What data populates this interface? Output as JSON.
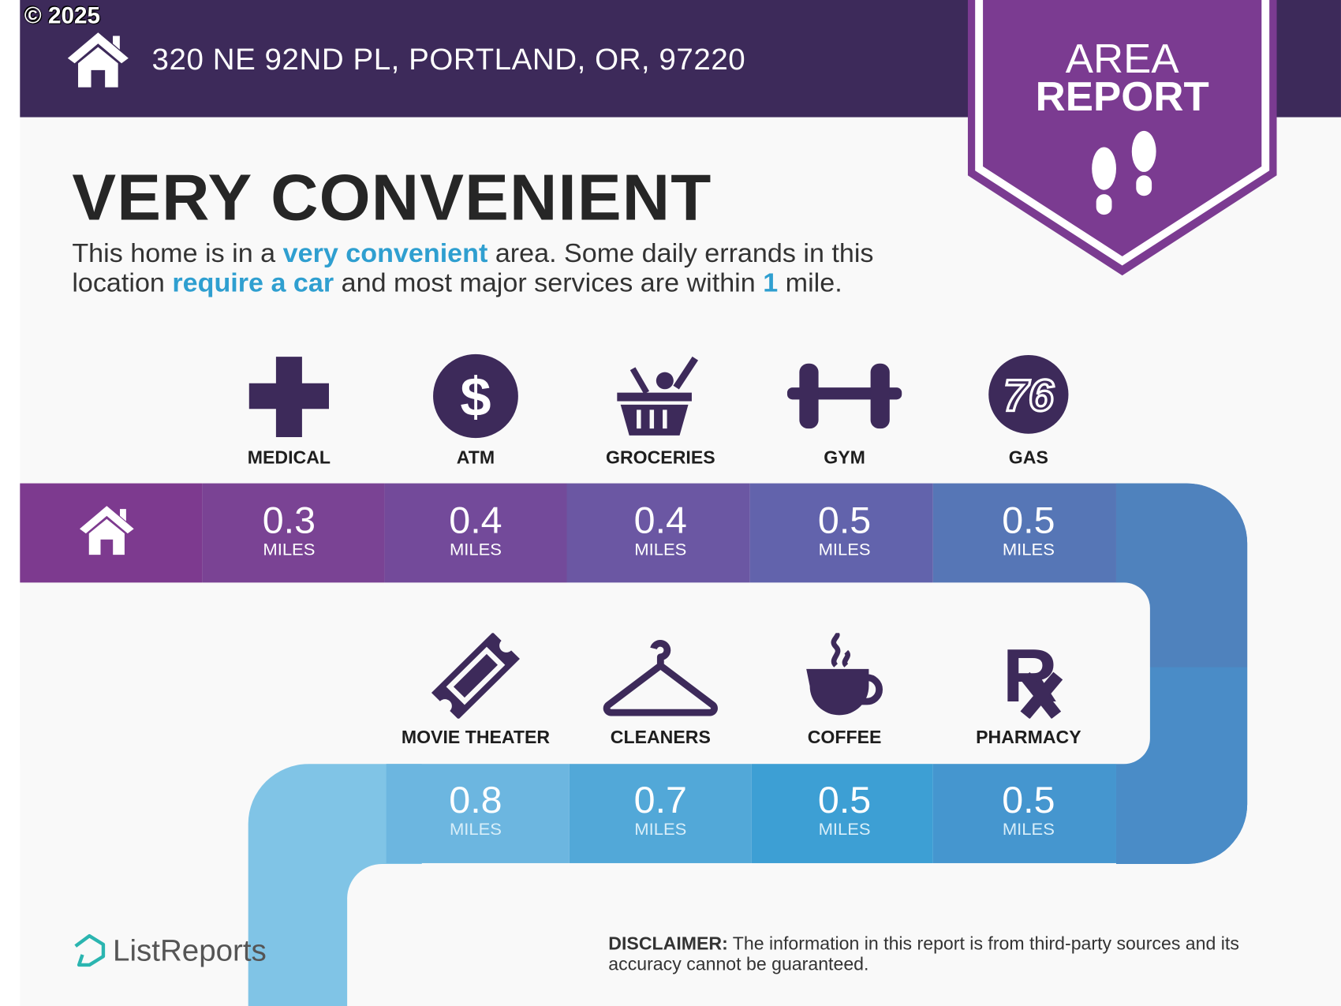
{
  "copyright": "© 2025",
  "header": {
    "address": "320 NE 92ND PL, PORTLAND, OR, 97220",
    "badge_line1": "AREA",
    "badge_line2": "REPORT"
  },
  "title": "VERY CONVENIENT",
  "description": {
    "p1": "This home is in a ",
    "h1": "very convenient",
    "p2": " area. Some daily errands in this location ",
    "h2": "require a car",
    "p3": " and most major services are within ",
    "h3": "1",
    "p4": " mile."
  },
  "row1": [
    {
      "label": "MEDICAL",
      "distance": "0.3",
      "unit": "MILES",
      "icon": "medical-cross-icon"
    },
    {
      "label": "ATM",
      "distance": "0.4",
      "unit": "MILES",
      "icon": "dollar-icon"
    },
    {
      "label": "GROCERIES",
      "distance": "0.4",
      "unit": "MILES",
      "icon": "grocery-basket-icon"
    },
    {
      "label": "GYM",
      "distance": "0.5",
      "unit": "MILES",
      "icon": "dumbbell-icon"
    },
    {
      "label": "GAS",
      "distance": "0.5",
      "unit": "MILES",
      "icon": "gas-76-icon"
    }
  ],
  "row2": [
    {
      "label": "MOVIE THEATER",
      "distance": "0.8",
      "unit": "MILES",
      "icon": "ticket-icon"
    },
    {
      "label": "CLEANERS",
      "distance": "0.7",
      "unit": "MILES",
      "icon": "hanger-icon"
    },
    {
      "label": "COFFEE",
      "distance": "0.5",
      "unit": "MILES",
      "icon": "coffee-cup-icon"
    },
    {
      "label": "PHARMACY",
      "distance": "0.5",
      "unit": "MILES",
      "icon": "rx-icon"
    }
  ],
  "gas_logo_text": "76",
  "footer": {
    "brand": "ListReports",
    "disclaimer_label": "DISCLAIMER:",
    "disclaimer_text": " The information in this report is from third-party sources and its accuracy cannot be guaranteed."
  },
  "colors": {
    "header": "#3d2a5a",
    "badge": "#7b3b91",
    "icon": "#3d2a5a",
    "highlight": "#2f9fd0",
    "logo": "#2bb5b0"
  }
}
